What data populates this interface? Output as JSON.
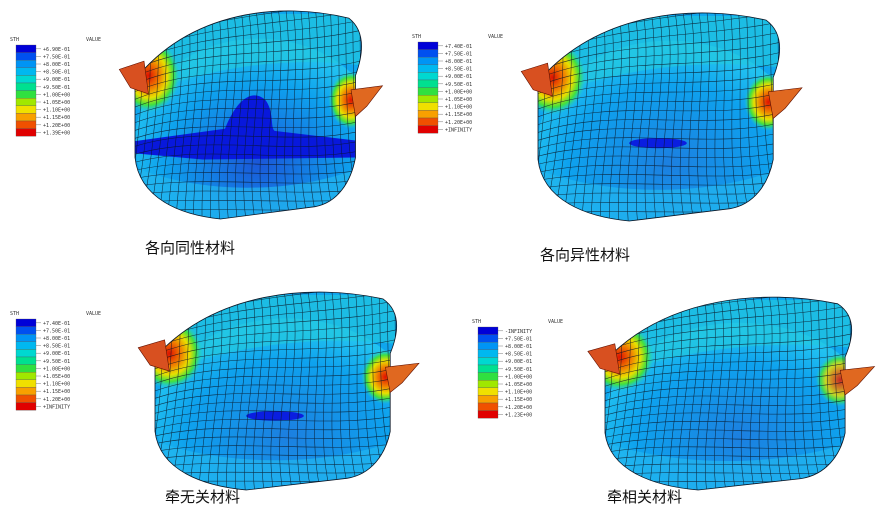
{
  "panels": [
    {
      "id": "isotropic",
      "caption": "各向同性材料",
      "legend_title": "STH",
      "legend_value_header": "VALUE",
      "legend_labels": [
        "+6.90E-01",
        "+7.50E-01",
        "+8.00E-01",
        "+8.50E-01",
        "+9.00E-01",
        "+9.50E-01",
        "+1.00E+00",
        "+1.05E+00",
        "+1.10E+00",
        "+1.15E+00",
        "+1.20E+00",
        "+1.39E+00"
      ]
    },
    {
      "id": "anisotropic",
      "caption": "各向异性材料",
      "legend_title": "STH",
      "legend_value_header": "VALUE",
      "legend_labels": [
        "+7.40E-01",
        "+7.50E-01",
        "+8.00E-01",
        "+8.50E-01",
        "+9.00E-01",
        "+9.50E-01",
        "+1.00E+00",
        "+1.05E+00",
        "+1.10E+00",
        "+1.15E+00",
        "+1.20E+00",
        "+INFINITY"
      ]
    },
    {
      "id": "barlat-independent",
      "caption": "牵无关材料",
      "legend_title": "STH",
      "legend_value_header": "VALUE",
      "legend_labels": [
        "+7.40E-01",
        "+7.50E-01",
        "+8.00E-01",
        "+8.50E-01",
        "+9.00E-01",
        "+9.50E-01",
        "+1.00E+00",
        "+1.05E+00",
        "+1.10E+00",
        "+1.15E+00",
        "+1.20E+00",
        "+INFINITY"
      ]
    },
    {
      "id": "barlat-dependent",
      "caption": "牵相关材料",
      "legend_title": "STH",
      "legend_value_header": "VALUE",
      "legend_labels": [
        "-INFINITY",
        "+7.50E-01",
        "+8.00E-01",
        "+8.50E-01",
        "+9.00E-01",
        "+9.50E-01",
        "+1.00E+00",
        "+1.05E+00",
        "+1.10E+00",
        "+1.15E+00",
        "+1.20E+00",
        "+1.23E+00"
      ]
    }
  ],
  "colors": {
    "scale": [
      "#0000d8",
      "#0050f0",
      "#0094f5",
      "#00b8f0",
      "#00d8d0",
      "#00e090",
      "#30e040",
      "#a0e800",
      "#f0e000",
      "#f8a000",
      "#f05000",
      "#e00000"
    ],
    "mesh_line": "#0b1a2a",
    "blue_region": "#1f6fd6",
    "light_region": "#29a8ee",
    "dark_spot": "#0a1ee0"
  }
}
